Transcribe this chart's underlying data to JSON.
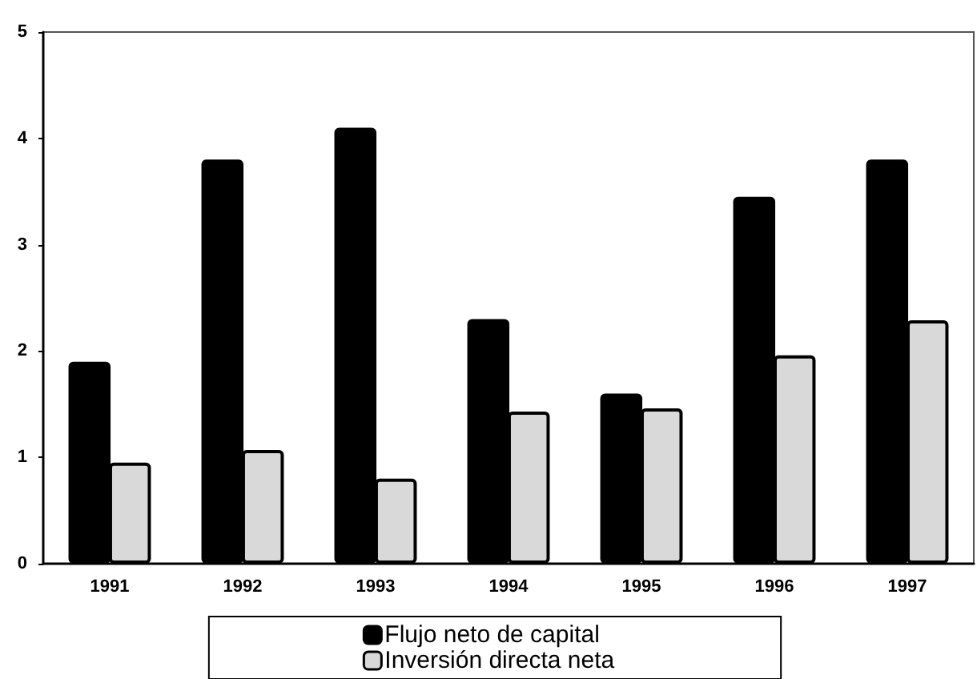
{
  "chart_data": {
    "type": "bar",
    "categories": [
      "1991",
      "1992",
      "1993",
      "1994",
      "1995",
      "1996",
      "1997"
    ],
    "series": [
      {
        "name": "Flujo neto de capital",
        "color": "#000000",
        "values": [
          1.9,
          3.8,
          4.1,
          2.3,
          1.6,
          3.45,
          3.8
        ]
      },
      {
        "name": "Inversión directa neta",
        "color": "#d9d9d9",
        "values": [
          0.95,
          1.07,
          0.8,
          1.43,
          1.46,
          1.96,
          2.29
        ]
      }
    ],
    "ylim": [
      0,
      5
    ],
    "yticks": [
      0,
      1,
      2,
      3,
      4,
      5
    ],
    "grid": false,
    "legend": "bottom"
  }
}
